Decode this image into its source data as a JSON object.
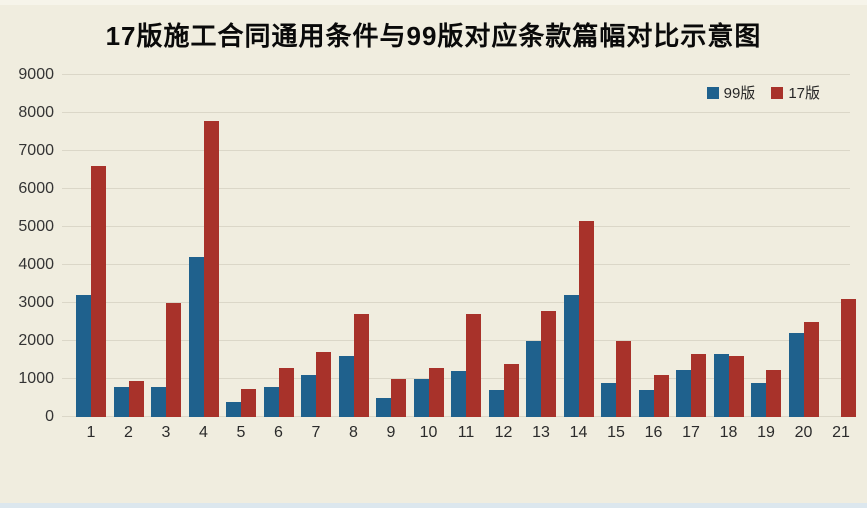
{
  "chart_data": {
    "type": "bar",
    "title": "17版施工合同通用条件与99版对应条款篇幅对比示意图",
    "categories": [
      "1",
      "2",
      "3",
      "4",
      "5",
      "6",
      "7",
      "8",
      "9",
      "10",
      "11",
      "12",
      "13",
      "14",
      "15",
      "16",
      "17",
      "18",
      "19",
      "20",
      "21"
    ],
    "series": [
      {
        "name": "99版",
        "color": "#1F618D",
        "values": [
          3200,
          800,
          800,
          4200,
          400,
          800,
          1100,
          1600,
          500,
          1000,
          1200,
          700,
          2000,
          3200,
          900,
          700,
          1250,
          1650,
          900,
          2200,
          0
        ]
      },
      {
        "name": "17版",
        "color": "#A8322A",
        "values": [
          6600,
          950,
          3000,
          7800,
          750,
          1300,
          1700,
          2700,
          1000,
          1300,
          2700,
          1400,
          2800,
          5150,
          2000,
          1100,
          1650,
          1600,
          1250,
          2500,
          3100
        ]
      }
    ],
    "xlabel": "",
    "ylabel": "",
    "ylim": [
      0,
      9000
    ],
    "yticks": [
      0,
      1000,
      2000,
      3000,
      4000,
      5000,
      6000,
      7000,
      8000,
      9000
    ],
    "grid": true,
    "legend_position": "top-right",
    "legend": [
      "99版",
      "17版"
    ]
  },
  "colors": {
    "background": "#F0EDDF",
    "gridline": "#DBD7C8",
    "axis_text": "#343434",
    "title_text": "#0A0A0A",
    "series_99": "#1F618D",
    "series_17": "#A8322A",
    "bottom_edge": "#DCE7EE"
  }
}
